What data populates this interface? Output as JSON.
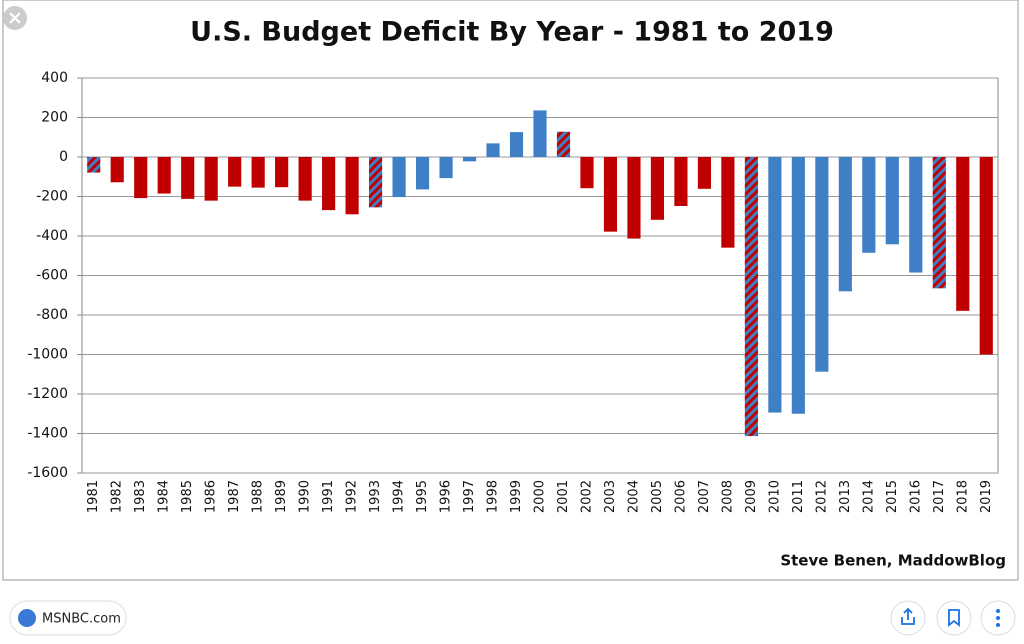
{
  "chart_data": {
    "type": "bar",
    "title": "U.S. Budget Deficit By Year - 1981 to 2019",
    "credit": "Steve Benen, MaddowBlog",
    "categories": [
      "1981",
      "1982",
      "1983",
      "1984",
      "1985",
      "1986",
      "1987",
      "1988",
      "1989",
      "1990",
      "1991",
      "1992",
      "1993",
      "1994",
      "1995",
      "1996",
      "1997",
      "1998",
      "1999",
      "2000",
      "2001",
      "2002",
      "2003",
      "2004",
      "2005",
      "2006",
      "2007",
      "2008",
      "2009",
      "2010",
      "2011",
      "2012",
      "2013",
      "2014",
      "2015",
      "2016",
      "2017",
      "2018",
      "2019"
    ],
    "values": [
      -79,
      -128,
      -208,
      -185,
      -212,
      -221,
      -150,
      -155,
      -153,
      -221,
      -269,
      -290,
      -255,
      -203,
      -164,
      -107,
      -22,
      69,
      126,
      236,
      128,
      -158,
      -378,
      -413,
      -318,
      -248,
      -161,
      -459,
      -1413,
      -1294,
      -1300,
      -1087,
      -680,
      -485,
      -442,
      -585,
      -665,
      -779,
      -1000
    ],
    "colors": [
      "striped",
      "#c00000",
      "#c00000",
      "#c00000",
      "#c00000",
      "#c00000",
      "#c00000",
      "#c00000",
      "#c00000",
      "#c00000",
      "#c00000",
      "#c00000",
      "striped",
      "#3f7fc6",
      "#3f7fc6",
      "#3f7fc6",
      "#3f7fc6",
      "#3f7fc6",
      "#3f7fc6",
      "#3f7fc6",
      "striped",
      "#c00000",
      "#c00000",
      "#c00000",
      "#c00000",
      "#c00000",
      "#c00000",
      "#c00000",
      "striped",
      "#3f7fc6",
      "#3f7fc6",
      "#3f7fc6",
      "#3f7fc6",
      "#3f7fc6",
      "#3f7fc6",
      "#3f7fc6",
      "striped",
      "#c00000",
      "#c00000"
    ],
    "ylim": [
      -1600,
      400
    ],
    "yticks": [
      -1600,
      -1400,
      -1200,
      -1000,
      -800,
      -600,
      -400,
      -200,
      0,
      200,
      400
    ],
    "grid": true
  },
  "ui": {
    "source": "MSNBC.com"
  }
}
